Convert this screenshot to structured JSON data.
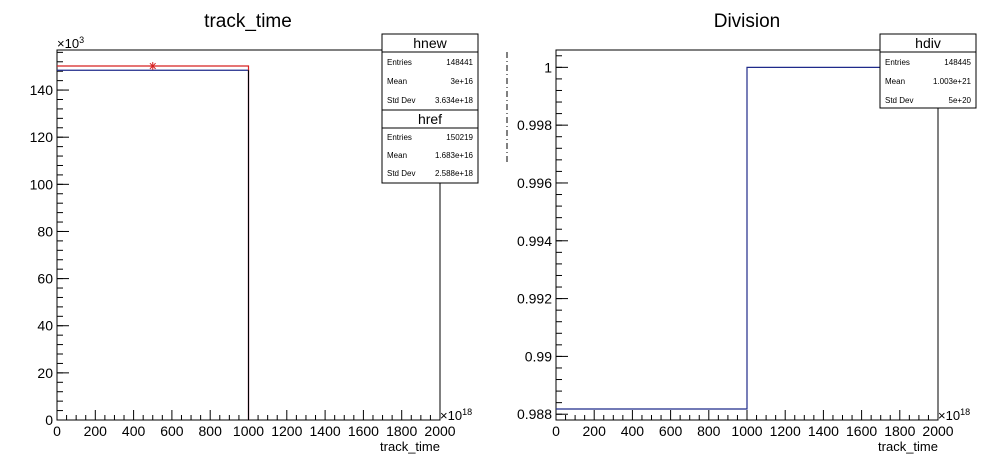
{
  "chart_data": [
    {
      "type": "histogram",
      "title": "track_time",
      "xlabel": "track_time",
      "ylabel": "",
      "x_exponent_label": "×10",
      "x_exponent_power": "18",
      "y_exponent_label": "×10",
      "y_exponent_power": "3",
      "xlim": [
        0,
        2000
      ],
      "ylim": [
        0,
        157
      ],
      "x_ticks": [
        "0",
        "200",
        "400",
        "600",
        "800",
        "1000",
        "1200",
        "1400",
        "1600",
        "1800",
        "2000"
      ],
      "y_ticks": [
        "0",
        "20",
        "40",
        "60",
        "80",
        "100",
        "120",
        "140"
      ],
      "grid": false,
      "series": [
        {
          "name": "hnew",
          "color": "#1f2a8a",
          "bins": [
            {
              "x0": 0,
              "x1": 1000,
              "y": 148.4
            }
          ]
        },
        {
          "name": "href",
          "color": "#d62020",
          "bins": [
            {
              "x0": 0,
              "x1": 1000,
              "y": 150.2
            }
          ],
          "marker": {
            "x": 500,
            "y": 150.2
          }
        }
      ],
      "stats": [
        {
          "title": "hnew",
          "rows": [
            {
              "label": "Entries",
              "value": "148441"
            },
            {
              "label": "Mean",
              "value": "3e+16"
            },
            {
              "label": "Std Dev",
              "value": "3.634e+18"
            }
          ]
        },
        {
          "title": "href",
          "rows": [
            {
              "label": "Entries",
              "value": "150219"
            },
            {
              "label": "Mean",
              "value": "1.683e+16"
            },
            {
              "label": "Std Dev",
              "value": "2.588e+18"
            }
          ]
        }
      ]
    },
    {
      "type": "histogram",
      "title": "Division",
      "xlabel": "track_time",
      "ylabel": "",
      "x_exponent_label": "×10",
      "x_exponent_power": "18",
      "xlim": [
        0,
        2000
      ],
      "ylim": [
        0.9878,
        1.0006
      ],
      "x_ticks": [
        "0",
        "200",
        "400",
        "600",
        "800",
        "1000",
        "1200",
        "1400",
        "1600",
        "1800",
        "2000"
      ],
      "y_ticks": [
        "0.988",
        "0.99",
        "0.992",
        "0.994",
        "0.996",
        "0.998",
        "1"
      ],
      "grid": false,
      "series": [
        {
          "name": "hdiv",
          "color": "#1f2a8a",
          "bins": [
            {
              "x0": 0,
              "x1": 1000,
              "y": 0.98818
            },
            {
              "x0": 1000,
              "x1": 2000,
              "y": 1.0
            }
          ]
        }
      ],
      "stats": [
        {
          "title": "hdiv",
          "rows": [
            {
              "label": "Entries",
              "value": "148445"
            },
            {
              "label": "Mean",
              "value": "1.003e+21"
            },
            {
              "label": "Std Dev",
              "value": "5e+20"
            }
          ]
        }
      ]
    }
  ]
}
